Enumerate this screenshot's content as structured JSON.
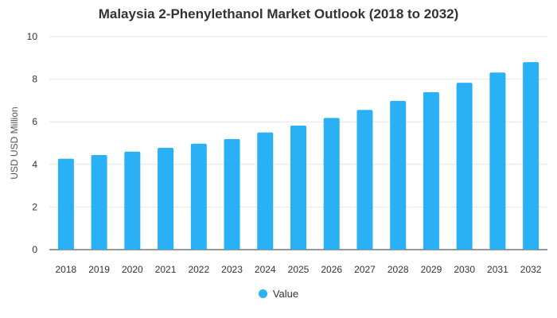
{
  "chart_data": {
    "type": "bar",
    "title": "Malaysia 2-Phenylethanol Market Outlook (2018 to 2032)",
    "xlabel": "",
    "ylabel": "USD USD Million",
    "ylim": [
      0,
      10
    ],
    "yticks": [
      0,
      2,
      4,
      6,
      8,
      10
    ],
    "grid": true,
    "legend_position": "bottom",
    "categories": [
      "2018",
      "2019",
      "2020",
      "2021",
      "2022",
      "2023",
      "2024",
      "2025",
      "2026",
      "2027",
      "2028",
      "2029",
      "2030",
      "2031",
      "2032"
    ],
    "series": [
      {
        "name": "Value",
        "color": "#2ab0f5",
        "values": [
          4.27,
          4.44,
          4.6,
          4.78,
          4.97,
          5.19,
          5.5,
          5.82,
          6.18,
          6.56,
          6.98,
          7.39,
          7.83,
          8.31,
          8.8
        ]
      }
    ]
  }
}
